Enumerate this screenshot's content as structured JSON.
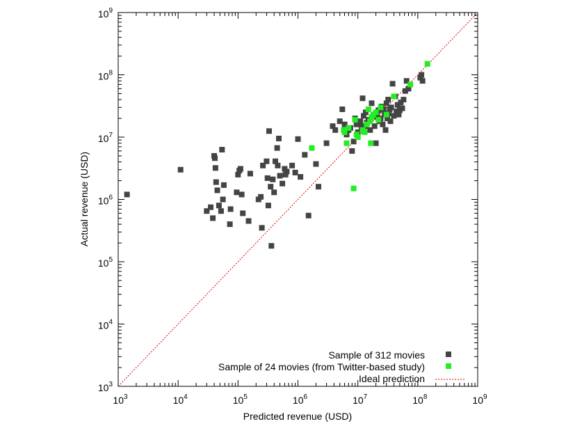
{
  "chart_data": {
    "type": "scatter",
    "xscale": "log",
    "yscale": "log",
    "xlim": [
      1000,
      1000000000
    ],
    "ylim": [
      1000,
      1000000000
    ],
    "xlabel": "Predicted revenue (USD)",
    "ylabel": "Actual revenue (USD)",
    "xticks": [
      {
        "base": "10",
        "exp": "3",
        "value": 1000
      },
      {
        "base": "10",
        "exp": "4",
        "value": 10000
      },
      {
        "base": "10",
        "exp": "5",
        "value": 100000
      },
      {
        "base": "10",
        "exp": "6",
        "value": 1000000
      },
      {
        "base": "10",
        "exp": "7",
        "value": 10000000
      },
      {
        "base": "10",
        "exp": "8",
        "value": 100000000
      },
      {
        "base": "10",
        "exp": "9",
        "value": 1000000000
      }
    ],
    "yticks": [
      {
        "base": "10",
        "exp": "3",
        "value": 1000
      },
      {
        "base": "10",
        "exp": "4",
        "value": 10000
      },
      {
        "base": "10",
        "exp": "5",
        "value": 100000
      },
      {
        "base": "10",
        "exp": "6",
        "value": 1000000
      },
      {
        "base": "10",
        "exp": "7",
        "value": 10000000
      },
      {
        "base": "10",
        "exp": "8",
        "value": 100000000
      },
      {
        "base": "10",
        "exp": "9",
        "value": 1000000000
      }
    ],
    "grid": false,
    "legend_position": "bottom-right",
    "series": [
      {
        "name": "Sample of 312 movies",
        "color": "#444444",
        "marker": "square",
        "points": [
          [
            1400,
            1200000
          ],
          [
            11000,
            3000000
          ],
          [
            30000,
            650000
          ],
          [
            35000,
            750000
          ],
          [
            38000,
            500000
          ],
          [
            40000,
            5000000
          ],
          [
            41000,
            4600000
          ],
          [
            42000,
            3200000
          ],
          [
            43000,
            1900000
          ],
          [
            45000,
            1400000
          ],
          [
            48000,
            800000
          ],
          [
            52000,
            650000
          ],
          [
            54000,
            6300000
          ],
          [
            56000,
            1000000
          ],
          [
            58000,
            1700000
          ],
          [
            73000,
            400000
          ],
          [
            75000,
            700000
          ],
          [
            95000,
            1300000
          ],
          [
            100000,
            2500000
          ],
          [
            105000,
            2900000
          ],
          [
            110000,
            3100000
          ],
          [
            115000,
            1200000
          ],
          [
            120000,
            600000
          ],
          [
            150000,
            450000
          ],
          [
            160000,
            2600000
          ],
          [
            220000,
            1000000
          ],
          [
            240000,
            1100000
          ],
          [
            250000,
            350000
          ],
          [
            260000,
            3500000
          ],
          [
            300000,
            4100000
          ],
          [
            310000,
            2200000
          ],
          [
            320000,
            800000
          ],
          [
            330000,
            12500000
          ],
          [
            350000,
            1600000
          ],
          [
            360000,
            180000
          ],
          [
            380000,
            2100000
          ],
          [
            400000,
            1300000
          ],
          [
            420000,
            4100000
          ],
          [
            450000,
            6700000
          ],
          [
            460000,
            3500000
          ],
          [
            480000,
            9500000
          ],
          [
            500000,
            2400000
          ],
          [
            550000,
            1800000
          ],
          [
            600000,
            3100000
          ],
          [
            620000,
            2500000
          ],
          [
            650000,
            2800000
          ],
          [
            800000,
            3500000
          ],
          [
            900000,
            2700000
          ],
          [
            1000000,
            9300000
          ],
          [
            1100000,
            2300000
          ],
          [
            1300000,
            5200000
          ],
          [
            1500000,
            550000
          ],
          [
            2000000,
            3700000
          ],
          [
            2200000,
            1600000
          ],
          [
            3000000,
            8000000
          ],
          [
            3800000,
            15000000
          ],
          [
            4200000,
            13000000
          ],
          [
            5000000,
            18000000
          ],
          [
            5500000,
            28000000
          ],
          [
            6000000,
            16000000
          ],
          [
            6500000,
            11000000
          ],
          [
            7000000,
            13000000
          ],
          [
            7500000,
            14000000
          ],
          [
            8000000,
            6000000
          ],
          [
            8500000,
            8500000
          ],
          [
            9000000,
            20000000
          ],
          [
            9500000,
            16000000
          ],
          [
            10000000,
            12000000
          ],
          [
            10500000,
            17000000
          ],
          [
            11000000,
            18000000
          ],
          [
            11500000,
            14000000
          ],
          [
            12000000,
            42000000
          ],
          [
            12500000,
            22000000
          ],
          [
            13000000,
            15000000
          ],
          [
            13500000,
            25000000
          ],
          [
            14000000,
            17000000
          ],
          [
            15000000,
            19000000
          ],
          [
            16000000,
            13000000
          ],
          [
            17000000,
            35000000
          ],
          [
            18000000,
            21000000
          ],
          [
            19000000,
            15000000
          ],
          [
            20000000,
            8000000
          ],
          [
            21000000,
            22000000
          ],
          [
            22000000,
            27000000
          ],
          [
            23000000,
            18000000
          ],
          [
            24000000,
            20000000
          ],
          [
            25000000,
            31000000
          ],
          [
            26000000,
            16000000
          ],
          [
            27000000,
            28000000
          ],
          [
            28000000,
            23000000
          ],
          [
            29000000,
            13000000
          ],
          [
            30000000,
            35000000
          ],
          [
            31000000,
            20000000
          ],
          [
            32000000,
            40000000
          ],
          [
            33000000,
            24000000
          ],
          [
            34000000,
            28000000
          ],
          [
            35000000,
            18000000
          ],
          [
            36000000,
            30000000
          ],
          [
            38000000,
            72000000
          ],
          [
            40000000,
            22000000
          ],
          [
            42000000,
            45000000
          ],
          [
            44000000,
            26000000
          ],
          [
            46000000,
            33000000
          ],
          [
            48000000,
            23000000
          ],
          [
            50000000,
            27000000
          ],
          [
            52000000,
            36000000
          ],
          [
            55000000,
            29000000
          ],
          [
            58000000,
            40000000
          ],
          [
            62000000,
            55000000
          ],
          [
            65000000,
            80000000
          ],
          [
            70000000,
            60000000
          ],
          [
            110000000,
            90000000
          ],
          [
            115000000,
            100000000
          ],
          [
            120000000,
            80000000
          ]
        ]
      },
      {
        "name": "Sample of 24 movies (from Twitter-based study)",
        "color": "#22ee22",
        "marker": "square",
        "points": [
          [
            1700000,
            6700000
          ],
          [
            5800000,
            13000000
          ],
          [
            6000000,
            12000000
          ],
          [
            6500000,
            8000000
          ],
          [
            7000000,
            14000000
          ],
          [
            8500000,
            1500000
          ],
          [
            9000000,
            19000000
          ],
          [
            9500000,
            11000000
          ],
          [
            10000000,
            10000000
          ],
          [
            12000000,
            13000000
          ],
          [
            13000000,
            12000000
          ],
          [
            14000000,
            16000000
          ],
          [
            15000000,
            28000000
          ],
          [
            16000000,
            18000000
          ],
          [
            16500000,
            8000000
          ],
          [
            17000000,
            21000000
          ],
          [
            18000000,
            23000000
          ],
          [
            20000000,
            25000000
          ],
          [
            22000000,
            19000000
          ],
          [
            24000000,
            30000000
          ],
          [
            30000000,
            23000000
          ],
          [
            40000000,
            45000000
          ],
          [
            75000000,
            70000000
          ],
          [
            145000000,
            150000000
          ]
        ]
      }
    ],
    "ideal_line": {
      "name": "Ideal prediction",
      "color": "#dd0000",
      "style": "dashed",
      "from": [
        1000,
        1000
      ],
      "to": [
        1000000000,
        1000000000
      ]
    }
  }
}
